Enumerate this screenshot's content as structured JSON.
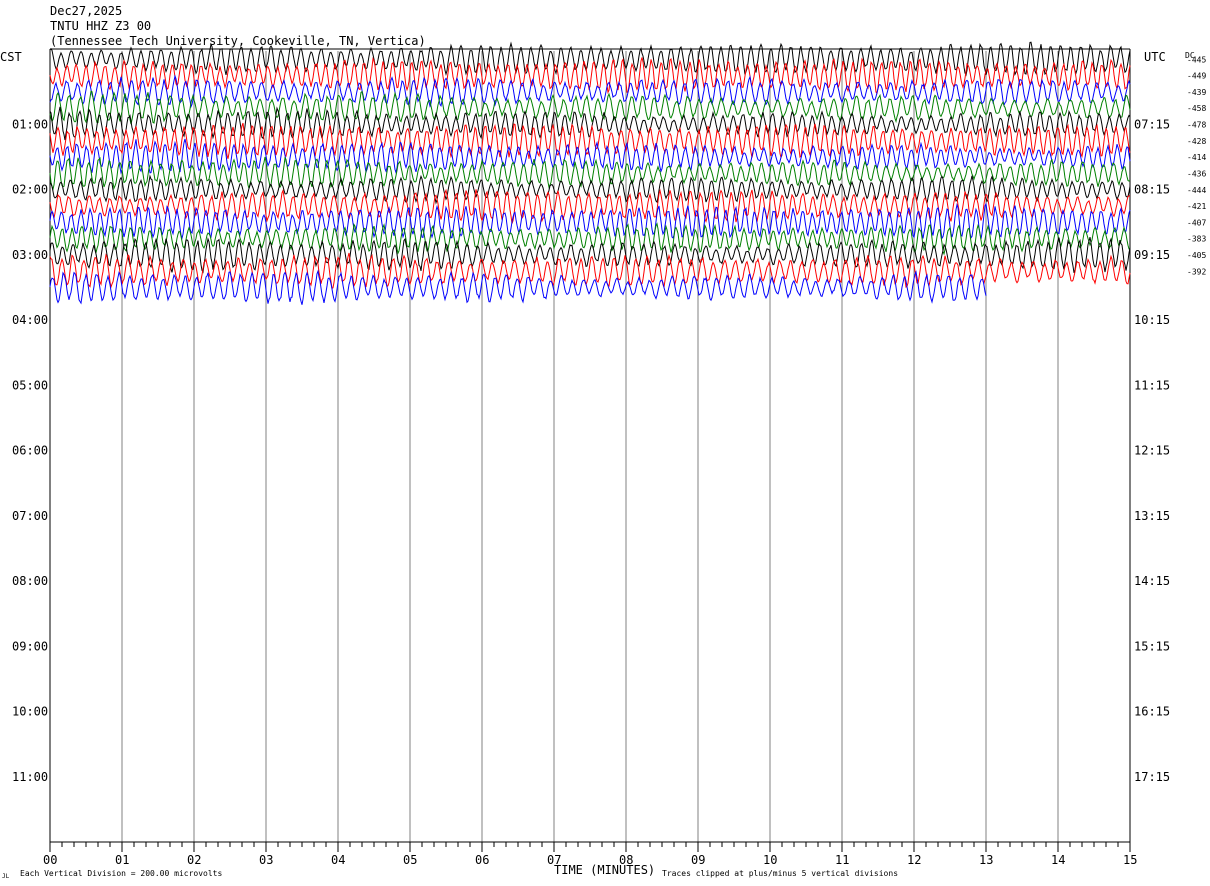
{
  "header": {
    "date": "Dec27,2025",
    "station": "TNTU HHZ Z3 00",
    "location": "(Tennessee Tech University, Cookeville, TN, Vertica)"
  },
  "axes": {
    "left_label": "CST",
    "right_label": "UTC",
    "dc_label": "DC",
    "x_title": "TIME (MINUTES)",
    "footer_left": "Each Vertical Division =  200.00 microvolts",
    "footer_right": "Traces clipped at plus/minus 5 vertical divisions",
    "corner_mark": "JL"
  },
  "colors": {
    "trace_cycle": [
      "#000000",
      "#ff0000",
      "#0000ff",
      "#008000"
    ],
    "grid": "#808080",
    "axis": "#000000"
  },
  "chart_data": {
    "type": "line",
    "title": "TNTU HHZ Z3 00",
    "xlabel": "TIME (MINUTES)",
    "x_ticks": [
      "00",
      "01",
      "02",
      "03",
      "04",
      "05",
      "06",
      "07",
      "08",
      "09",
      "10",
      "11",
      "12",
      "13",
      "14",
      "15"
    ],
    "xlim": [
      0,
      15
    ],
    "left_time_labels": [
      "01:00",
      "02:00",
      "03:00",
      "04:00",
      "05:00",
      "06:00",
      "07:00",
      "08:00",
      "09:00",
      "10:00",
      "11:00"
    ],
    "right_time_labels": [
      "07:15",
      "08:15",
      "09:15",
      "10:15",
      "11:15",
      "12:15",
      "13:15",
      "14:15",
      "15:15",
      "16:15",
      "17:15"
    ],
    "dc_offsets": [
      "-445",
      "-449",
      "-439",
      "-458",
      "-478",
      "-428",
      "-414",
      "-436",
      "-444",
      "-421",
      "-407",
      "-383",
      "-405",
      "-392"
    ],
    "trace_count": 15,
    "last_trace_end_minute": 13,
    "rows_total": 48,
    "grid": true
  }
}
